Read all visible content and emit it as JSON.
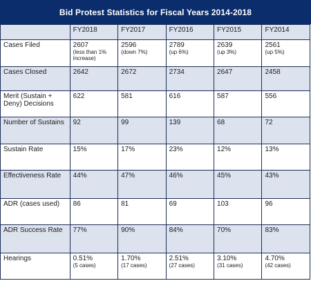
{
  "title": "Bid Protest Statistics for Fiscal Years 2014-2018",
  "columns": [
    "",
    "FY2018",
    "FY2017",
    "FY2016",
    "FY2015",
    "FY2014"
  ],
  "rows": [
    {
      "label": "Cases Filed",
      "cells": [
        {
          "main": "2607",
          "sub": "(less than 1% increase)"
        },
        {
          "main": "2596",
          "sub": "(down 7%)"
        },
        {
          "main": "2789",
          "sub": "(up 6%)"
        },
        {
          "main": "2639",
          "sub": "(up 3%)"
        },
        {
          "main": "2561",
          "sub": "(up 5%)"
        }
      ]
    },
    {
      "label": "Cases Closed",
      "cells": [
        {
          "main": "2642",
          "sub": ""
        },
        {
          "main": "2672",
          "sub": ""
        },
        {
          "main": "2734",
          "sub": ""
        },
        {
          "main": "2647",
          "sub": ""
        },
        {
          "main": "2458",
          "sub": ""
        }
      ]
    },
    {
      "label": "Merit (Sustain + Deny) Decisions",
      "cells": [
        {
          "main": "622",
          "sub": ""
        },
        {
          "main": "581",
          "sub": ""
        },
        {
          "main": "616",
          "sub": ""
        },
        {
          "main": "587",
          "sub": ""
        },
        {
          "main": "556",
          "sub": ""
        }
      ]
    },
    {
      "label": "Number of Sustains",
      "cells": [
        {
          "main": "92",
          "sub": ""
        },
        {
          "main": "99",
          "sub": ""
        },
        {
          "main": "139",
          "sub": ""
        },
        {
          "main": "68",
          "sub": ""
        },
        {
          "main": "72",
          "sub": ""
        }
      ]
    },
    {
      "label": "Sustain Rate",
      "cells": [
        {
          "main": "15%",
          "sub": ""
        },
        {
          "main": "17%",
          "sub": ""
        },
        {
          "main": "23%",
          "sub": ""
        },
        {
          "main": "12%",
          "sub": ""
        },
        {
          "main": "13%",
          "sub": ""
        }
      ]
    },
    {
      "label": "Effectiveness Rate",
      "cells": [
        {
          "main": "44%",
          "sub": ""
        },
        {
          "main": "47%",
          "sub": ""
        },
        {
          "main": "46%",
          "sub": ""
        },
        {
          "main": "45%",
          "sub": ""
        },
        {
          "main": "43%",
          "sub": ""
        }
      ]
    },
    {
      "label": "ADR (cases used)",
      "cells": [
        {
          "main": "86",
          "sub": ""
        },
        {
          "main": "81",
          "sub": ""
        },
        {
          "main": "69",
          "sub": ""
        },
        {
          "main": "103",
          "sub": ""
        },
        {
          "main": "96",
          "sub": ""
        }
      ]
    },
    {
      "label": "ADR Success Rate",
      "cells": [
        {
          "main": "77%",
          "sub": ""
        },
        {
          "main": "90%",
          "sub": ""
        },
        {
          "main": "84%",
          "sub": ""
        },
        {
          "main": "70%",
          "sub": ""
        },
        {
          "main": "83%",
          "sub": ""
        }
      ]
    },
    {
      "label": "Hearings",
      "cells": [
        {
          "main": "0.51%",
          "sub": "(5 cases)"
        },
        {
          "main": "1.70%",
          "sub": "(17 cases)"
        },
        {
          "main": "2.51%",
          "sub": "(27 cases)"
        },
        {
          "main": "3.10%",
          "sub": "(31 cases)"
        },
        {
          "main": "4.70%",
          "sub": "(42 cases)"
        }
      ]
    }
  ],
  "colors": {
    "title_bg": "#0b2d6b",
    "row_shade": "#dde3ee",
    "border": "#1b2d55"
  }
}
